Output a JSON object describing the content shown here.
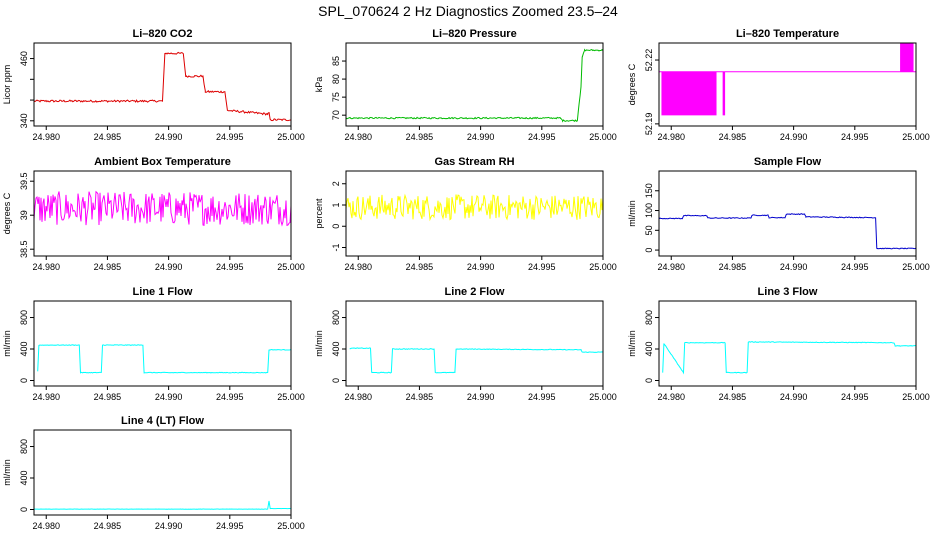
{
  "title": "SPL_070624  2 Hz Diagnostics Zoomed 23.5–24",
  "chart_data": [
    {
      "type": "line",
      "title": "Li–820 CO2",
      "ylabel": "Licor ppm",
      "color": "#dd0000",
      "xlim": [
        24.979,
        25.0
      ],
      "ylim": [
        330,
        490
      ],
      "yticks": [
        340,
        380,
        420,
        460
      ],
      "yticklabels": [
        "340",
        "",
        "",
        "460"
      ],
      "xticks": [
        24.98,
        24.985,
        24.99,
        24.995,
        25.0
      ],
      "xticklabels": [
        "24.980",
        "24.985",
        "24.990",
        "24.995",
        "25.000"
      ],
      "noise": 2,
      "x": [
        24.979,
        24.9895,
        24.9897,
        24.9912,
        24.9914,
        24.9928,
        24.993,
        24.9946,
        24.9948,
        24.9981,
        24.9982,
        24.9983,
        25.0
      ],
      "y": [
        378,
        378,
        470,
        470,
        426,
        426,
        396,
        396,
        360,
        353,
        355,
        342,
        342
      ]
    },
    {
      "type": "line",
      "title": "Li–820 Pressure",
      "ylabel": "kPa",
      "color": "#00bb00",
      "xlim": [
        24.979,
        25.0
      ],
      "ylim": [
        67,
        90
      ],
      "yticks": [
        70,
        75,
        80,
        85
      ],
      "yticklabels": [
        "70",
        "75",
        "80",
        "85"
      ],
      "xticks": [
        24.98,
        24.985,
        24.99,
        24.995,
        25.0
      ],
      "xticklabels": [
        "24.980",
        "24.985",
        "24.990",
        "24.995",
        "25.000"
      ],
      "noise": 0.2,
      "x": [
        24.979,
        24.9965,
        24.9967,
        24.9979,
        24.9982,
        24.9983,
        24.9985,
        25.0
      ],
      "y": [
        69.2,
        69.2,
        68.5,
        68.5,
        78,
        86,
        88,
        88
      ]
    },
    {
      "type": "line",
      "title": "Li–820 Temperature",
      "ylabel": "degrees C",
      "color": "#ff00ff",
      "xlim": [
        24.979,
        25.0
      ],
      "ylim": [
        52.189,
        52.228
      ],
      "yticks": [
        52.19,
        52.22
      ],
      "yticklabels": [
        "52.19",
        "52.22"
      ],
      "xticks": [
        24.98,
        24.985,
        24.99,
        24.995,
        25.0
      ],
      "xticklabels": [
        "24.980",
        "24.985",
        "24.990",
        "24.995",
        "25.000"
      ],
      "noise": 0,
      "x": [
        24.979,
        25.0
      ],
      "y": [
        52.2145,
        52.2145
      ],
      "bands": [
        {
          "x0": 24.9792,
          "x1": 24.9837,
          "lo": 52.194,
          "hi": 52.2145
        },
        {
          "x0": 24.9842,
          "x1": 24.9844,
          "lo": 52.194,
          "hi": 52.2145
        },
        {
          "x0": 24.9987,
          "x1": 24.9998,
          "lo": 52.2145,
          "hi": 52.228
        }
      ]
    },
    {
      "type": "line",
      "title": "Ambient Box Temperature",
      "ylabel": "degrees C",
      "color": "#ff00ff",
      "xlim": [
        24.979,
        25.0
      ],
      "ylim": [
        38.4,
        39.65
      ],
      "yticks": [
        38.5,
        39.0,
        39.5
      ],
      "yticklabels": [
        "38.5",
        "39",
        "39.5"
      ],
      "xticks": [
        24.98,
        24.985,
        24.99,
        24.995,
        25.0
      ],
      "xticklabels": [
        "24.980",
        "24.985",
        "24.990",
        "24.995",
        "25.000"
      ],
      "noise": 0.25,
      "x": [
        24.979,
        25.0
      ],
      "y": [
        39.1,
        39.1
      ]
    },
    {
      "type": "line",
      "title": "Gas Stream RH",
      "ylabel": "percent",
      "color": "#ffff00",
      "xlim": [
        24.979,
        25.0
      ],
      "ylim": [
        -1.4,
        2.6
      ],
      "yticks": [
        -1,
        0,
        1,
        2
      ],
      "yticklabels": [
        "-1",
        "0",
        "1",
        "2"
      ],
      "xticks": [
        24.98,
        24.985,
        24.99,
        24.995,
        25.0
      ],
      "xticklabels": [
        "24.980",
        "24.985",
        "24.990",
        "24.995",
        "25.000"
      ],
      "noise": 0.6,
      "x": [
        24.979,
        25.0
      ],
      "y": [
        0.9,
        0.9
      ]
    },
    {
      "type": "line",
      "title": "Sample Flow",
      "ylabel": "ml/min",
      "color": "#0000cc",
      "xlim": [
        24.979,
        25.0
      ],
      "ylim": [
        -15,
        200
      ],
      "yticks": [
        0,
        50,
        100,
        150
      ],
      "yticklabels": [
        "0",
        "50",
        "100",
        "150"
      ],
      "xticks": [
        24.98,
        24.985,
        24.99,
        24.995,
        25.0
      ],
      "xticklabels": [
        "24.980",
        "24.985",
        "24.990",
        "24.995",
        "25.000"
      ],
      "noise": 1,
      "x": [
        24.979,
        24.9809,
        24.981,
        24.9829,
        24.983,
        24.9865,
        24.9866,
        24.9879,
        24.988,
        24.9893,
        24.9894,
        24.9909,
        24.991,
        24.9967,
        24.9968,
        25.0
      ],
      "y": [
        80,
        80,
        87,
        87,
        81,
        81,
        88,
        88,
        82,
        82,
        91,
        91,
        84,
        82,
        4,
        4
      ]
    },
    {
      "type": "line",
      "title": "Line 1 Flow",
      "ylabel": "ml/min",
      "color": "#00ffff",
      "xlim": [
        24.979,
        25.0
      ],
      "ylim": [
        -70,
        1010
      ],
      "yticks": [
        0,
        400,
        800
      ],
      "yticklabels": [
        "0",
        "400",
        "800"
      ],
      "xticks": [
        24.98,
        24.985,
        24.99,
        24.995,
        25.0
      ],
      "xticklabels": [
        "24.980",
        "24.985",
        "24.990",
        "24.995",
        "25.000"
      ],
      "noise": 4,
      "x": [
        24.9793,
        24.9794,
        24.9827,
        24.9828,
        24.9845,
        24.9846,
        24.9879,
        24.988,
        24.9981,
        24.9982,
        25.0
      ],
      "y": [
        120,
        450,
        450,
        100,
        100,
        450,
        450,
        100,
        100,
        390,
        390
      ]
    },
    {
      "type": "line",
      "title": "Line 2 Flow",
      "ylabel": "ml/min",
      "color": "#00ffff",
      "xlim": [
        24.979,
        25.0
      ],
      "ylim": [
        -70,
        1010
      ],
      "yticks": [
        0,
        400,
        800
      ],
      "yticklabels": [
        "0",
        "400",
        "800"
      ],
      "xticks": [
        24.98,
        24.985,
        24.99,
        24.995,
        25.0
      ],
      "xticklabels": [
        "24.980",
        "24.985",
        "24.990",
        "24.995",
        "25.000"
      ],
      "noise": 4,
      "x": [
        24.9793,
        24.9794,
        24.981,
        24.9811,
        24.9827,
        24.9828,
        24.9862,
        24.9863,
        24.9879,
        24.988,
        24.9982,
        24.9983,
        25.0
      ],
      "y": [
        400,
        410,
        410,
        100,
        100,
        400,
        400,
        100,
        100,
        400,
        390,
        360,
        360
      ]
    },
    {
      "type": "line",
      "title": "Line 3 Flow",
      "ylabel": "ml/min",
      "color": "#00ffff",
      "xlim": [
        24.979,
        25.0
      ],
      "ylim": [
        -70,
        1010
      ],
      "yticks": [
        0,
        400,
        800
      ],
      "yticklabels": [
        "0",
        "400",
        "800"
      ],
      "xticks": [
        24.98,
        24.985,
        24.99,
        24.995,
        25.0
      ],
      "xticklabels": [
        "24.980",
        "24.985",
        "24.990",
        "24.995",
        "25.000"
      ],
      "noise": 4,
      "x": [
        24.9793,
        24.9794,
        24.981,
        24.9811,
        24.9844,
        24.9845,
        24.9862,
        24.9863,
        24.9982,
        24.9983,
        25.0
      ],
      "y": [
        100,
        470,
        100,
        480,
        480,
        100,
        100,
        490,
        480,
        440,
        440
      ]
    },
    {
      "type": "line",
      "title": "Line 4 (LT) Flow",
      "ylabel": "ml/min",
      "color": "#00ffff",
      "xlim": [
        24.979,
        25.0
      ],
      "ylim": [
        -70,
        1010
      ],
      "yticks": [
        0,
        400,
        800
      ],
      "yticklabels": [
        "0",
        "400",
        "800"
      ],
      "xticks": [
        24.98,
        24.985,
        24.99,
        24.995,
        25.0
      ],
      "xticklabels": [
        "24.980",
        "24.985",
        "24.990",
        "24.995",
        "25.000"
      ],
      "noise": 1,
      "x": [
        24.979,
        24.9981,
        24.9982,
        24.9983,
        25.0
      ],
      "y": [
        5,
        5,
        110,
        12,
        12
      ]
    }
  ]
}
